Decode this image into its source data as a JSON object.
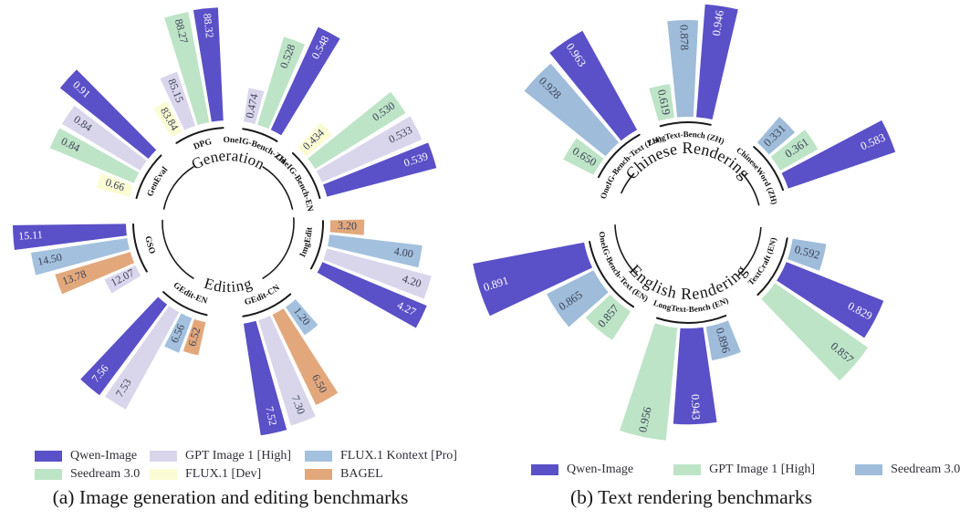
{
  "chart_data": [
    {
      "id": "chart-a",
      "type": "radial_bar",
      "caption": "(a) Image generation and editing benchmarks",
      "legend_layout": "two-rows",
      "series": [
        {
          "name": "Qwen-Image",
          "color": "#5a50c7",
          "label_color": "#ffffff"
        },
        {
          "name": "GPT Image 1 [High]",
          "color": "#d9d6ec",
          "label_color": "#3d4257"
        },
        {
          "name": "FLUX.1 Kontext [Pro]",
          "color": "#a3c1de",
          "label_color": "#3d4257"
        },
        {
          "name": "Seedream 3.0",
          "color": "#bde4c6",
          "label_color": "#3d4257"
        },
        {
          "name": "FLUX.1 [Dev]",
          "color": "#fbfcd4",
          "label_color": "#3d4257"
        },
        {
          "name": "BAGEL",
          "color": "#e2a87c",
          "label_color": "#3d4257"
        }
      ],
      "hemispheres": [
        {
          "title": "Generation",
          "arc": [
            -78,
            78
          ],
          "title_gap": [
            -32,
            32
          ],
          "groups": [
            {
              "label": "GenEval",
              "span": [
                -76,
                -44
              ],
              "bars": [
                {
                  "series": "FLUX.1 [Dev]",
                  "value": 0.66,
                  "label": "0.66"
                },
                {
                  "series": "Seedream 3.0",
                  "value": 0.84,
                  "label": "0.84"
                },
                {
                  "series": "GPT Image 1 [High]",
                  "value": 0.84,
                  "label": "0.84"
                },
                {
                  "series": "Qwen-Image",
                  "value": 0.91,
                  "label": "0.91"
                }
              ]
            },
            {
              "label": "DPG",
              "span": [
                -34,
                -2
              ],
              "bars": [
                {
                  "series": "FLUX.1 [Dev]",
                  "value": 83.84,
                  "label": "83.84"
                },
                {
                  "series": "GPT Image 1 [High]",
                  "value": 85.15,
                  "label": "85.15"
                },
                {
                  "series": "Seedream 3.0",
                  "value": 88.27,
                  "label": "88.27"
                },
                {
                  "series": "Qwen-Image",
                  "value": 88.32,
                  "label": "88.32"
                }
              ]
            },
            {
              "label": "OneIG-Bench-ZH",
              "span": [
                8,
                32
              ],
              "bars": [
                {
                  "series": "GPT Image 1 [High]",
                  "value": 0.474,
                  "label": "0.474"
                },
                {
                  "series": "Seedream 3.0",
                  "value": 0.528,
                  "label": "0.528"
                },
                {
                  "series": "Qwen-Image",
                  "value": 0.548,
                  "label": "0.548"
                }
              ]
            },
            {
              "label": "OneIG-Bench-EN",
              "span": [
                42,
                76
              ],
              "bars": [
                {
                  "series": "FLUX.1 [Dev]",
                  "value": 0.434,
                  "label": "0.434"
                },
                {
                  "series": "Seedream 3.0",
                  "value": 0.53,
                  "label": "0.530"
                },
                {
                  "series": "GPT Image 1 [High]",
                  "value": 0.533,
                  "label": "0.533"
                },
                {
                  "series": "Qwen-Image",
                  "value": 0.539,
                  "label": "0.539"
                }
              ]
            }
          ]
        },
        {
          "title": "Editing",
          "arc": [
            86,
            272
          ],
          "title_gap": [
            148,
            212
          ],
          "groups": [
            {
              "label": "ImgEdit",
              "span": [
                88,
                120
              ],
              "bars": [
                {
                  "series": "BAGEL",
                  "value": 3.2,
                  "label": "3.20"
                },
                {
                  "series": "FLUX.1 Kontext [Pro]",
                  "value": 4.0,
                  "label": "4.00"
                },
                {
                  "series": "GPT Image 1 [High]",
                  "value": 4.2,
                  "label": "4.20"
                },
                {
                  "series": "Qwen-Image",
                  "value": 4.27,
                  "label": "4.27"
                }
              ]
            },
            {
              "label": "GEdit-CN",
              "span": [
                138,
                172
              ],
              "bars": [
                {
                  "series": "FLUX.1 Kontext [Pro]",
                  "value": 1.2,
                  "label": "1.20"
                },
                {
                  "series": "BAGEL",
                  "value": 6.5,
                  "label": "6.50"
                },
                {
                  "series": "GPT Image 1 [High]",
                  "value": 7.3,
                  "label": "7.30"
                },
                {
                  "series": "Qwen-Image",
                  "value": 7.52,
                  "label": "7.52"
                }
              ]
            },
            {
              "label": "GEdit-EN",
              "span": [
                192,
                224
              ],
              "bars": [
                {
                  "series": "BAGEL",
                  "value": 6.52,
                  "label": "6.52"
                },
                {
                  "series": "FLUX.1 Kontext [Pro]",
                  "value": 6.56,
                  "label": "6.56"
                },
                {
                  "series": "GPT Image 1 [High]",
                  "value": 7.53,
                  "label": "7.53"
                },
                {
                  "series": "Qwen-Image",
                  "value": 7.56,
                  "label": "7.56"
                }
              ]
            },
            {
              "label": "GSO",
              "span": [
                238,
                270
              ],
              "bars": [
                {
                  "series": "GPT Image 1 [High]",
                  "value": 12.07,
                  "label": "12.07"
                },
                {
                  "series": "BAGEL",
                  "value": 13.78,
                  "label": "13.78"
                },
                {
                  "series": "FLUX.1 Kontext [Pro]",
                  "value": 14.5,
                  "label": "14.50"
                },
                {
                  "series": "Qwen-Image",
                  "value": 15.11,
                  "label": "15.11"
                }
              ]
            }
          ]
        }
      ]
    },
    {
      "id": "chart-b",
      "type": "radial_bar",
      "caption": "(b) Text rendering benchmarks",
      "legend_layout": "one-row",
      "series": [
        {
          "name": "Qwen-Image",
          "color": "#5a50c7",
          "label_color": "#ffffff"
        },
        {
          "name": "GPT Image 1 [High]",
          "color": "#bde4c6",
          "label_color": "#3d4257"
        },
        {
          "name": "Seedream 3.0",
          "color": "#9fbcda",
          "label_color": "#3d4257"
        }
      ],
      "hemispheres": [
        {
          "title": "Chinese Rendering",
          "arc": [
            -66,
            76
          ],
          "title_gap": [
            -48,
            48
          ],
          "groups": [
            {
              "label": "OneIG-Bench-Text (ZH)",
              "span": [
                -64,
                -28
              ],
              "bars": [
                {
                  "series": "GPT Image 1 [High]",
                  "value": 0.65,
                  "label": "0.650"
                },
                {
                  "series": "Seedream 3.0",
                  "value": 0.928,
                  "label": "0.928"
                },
                {
                  "series": "Qwen-Image",
                  "value": 0.963,
                  "label": "0.963"
                }
              ]
            },
            {
              "label": "LongText-Bench (ZH)",
              "span": [
                -17,
                14
              ],
              "bars": [
                {
                  "series": "GPT Image 1 [High]",
                  "value": 0.619,
                  "label": "0.619"
                },
                {
                  "series": "Seedream 3.0",
                  "value": 0.878,
                  "label": "0.878"
                },
                {
                  "series": "Qwen-Image",
                  "value": 0.946,
                  "label": "0.946"
                }
              ]
            },
            {
              "label": "ChineseWord (ZH)",
              "span": [
                40,
                72
              ],
              "bars": [
                {
                  "series": "Seedream 3.0",
                  "value": 0.331,
                  "label": "0.331"
                },
                {
                  "series": "GPT Image 1 [High]",
                  "value": 0.361,
                  "label": "0.361"
                },
                {
                  "series": "Qwen-Image",
                  "value": 0.583,
                  "label": "0.583"
                }
              ]
            }
          ]
        },
        {
          "title": "English Rendering",
          "arc": [
            94,
            268
          ],
          "title_gap": [
            136,
            224
          ],
          "groups": [
            {
              "label": "TextCraft (EN)",
              "span": [
                98,
                137
              ],
              "bars": [
                {
                  "series": "Seedream 3.0",
                  "value": 0.592,
                  "label": "0.592"
                },
                {
                  "series": "Qwen-Image",
                  "value": 0.829,
                  "label": "0.829"
                },
                {
                  "series": "GPT Image 1 [High]",
                  "value": 0.857,
                  "label": "0.857"
                }
              ]
            },
            {
              "label": "LongText-Bench (EN)",
              "span": [
                157,
                199
              ],
              "bars": [
                {
                  "series": "Seedream 3.0",
                  "value": 0.896,
                  "label": "0.896"
                },
                {
                  "series": "Qwen-Image",
                  "value": 0.943,
                  "label": "0.943"
                },
                {
                  "series": "GPT Image 1 [High]",
                  "value": 0.956,
                  "label": "0.956"
                }
              ]
            },
            {
              "label": "OneIG-Bench-Text (EN)",
              "span": [
                212,
                260
              ],
              "bars": [
                {
                  "series": "GPT Image 1 [High]",
                  "value": 0.857,
                  "label": "0.857"
                },
                {
                  "series": "Seedream 3.0",
                  "value": 0.865,
                  "label": "0.865"
                },
                {
                  "series": "Qwen-Image",
                  "value": 0.891,
                  "label": "0.891"
                }
              ]
            }
          ]
        }
      ]
    }
  ]
}
